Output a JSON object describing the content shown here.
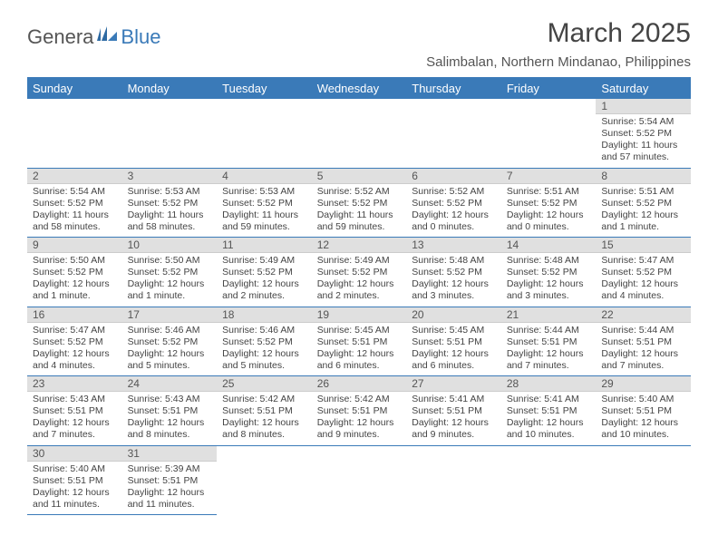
{
  "logo": {
    "part1": "Genera",
    "part2": "Blue"
  },
  "title": "March 2025",
  "subtitle": "Salimbalan, Northern Mindanao, Philippines",
  "colors": {
    "header_bg": "#3a7ab8",
    "header_fg": "#ffffff",
    "daynum_bg": "#e0e0e0",
    "rule": "#3a7ab8"
  },
  "dayHeaders": [
    "Sunday",
    "Monday",
    "Tuesday",
    "Wednesday",
    "Thursday",
    "Friday",
    "Saturday"
  ],
  "weeks": [
    [
      null,
      null,
      null,
      null,
      null,
      null,
      {
        "n": "1",
        "sunrise": "5:54 AM",
        "sunset": "5:52 PM",
        "daylight": "11 hours and 57 minutes."
      }
    ],
    [
      {
        "n": "2",
        "sunrise": "5:54 AM",
        "sunset": "5:52 PM",
        "daylight": "11 hours and 58 minutes."
      },
      {
        "n": "3",
        "sunrise": "5:53 AM",
        "sunset": "5:52 PM",
        "daylight": "11 hours and 58 minutes."
      },
      {
        "n": "4",
        "sunrise": "5:53 AM",
        "sunset": "5:52 PM",
        "daylight": "11 hours and 59 minutes."
      },
      {
        "n": "5",
        "sunrise": "5:52 AM",
        "sunset": "5:52 PM",
        "daylight": "11 hours and 59 minutes."
      },
      {
        "n": "6",
        "sunrise": "5:52 AM",
        "sunset": "5:52 PM",
        "daylight": "12 hours and 0 minutes."
      },
      {
        "n": "7",
        "sunrise": "5:51 AM",
        "sunset": "5:52 PM",
        "daylight": "12 hours and 0 minutes."
      },
      {
        "n": "8",
        "sunrise": "5:51 AM",
        "sunset": "5:52 PM",
        "daylight": "12 hours and 1 minute."
      }
    ],
    [
      {
        "n": "9",
        "sunrise": "5:50 AM",
        "sunset": "5:52 PM",
        "daylight": "12 hours and 1 minute."
      },
      {
        "n": "10",
        "sunrise": "5:50 AM",
        "sunset": "5:52 PM",
        "daylight": "12 hours and 1 minute."
      },
      {
        "n": "11",
        "sunrise": "5:49 AM",
        "sunset": "5:52 PM",
        "daylight": "12 hours and 2 minutes."
      },
      {
        "n": "12",
        "sunrise": "5:49 AM",
        "sunset": "5:52 PM",
        "daylight": "12 hours and 2 minutes."
      },
      {
        "n": "13",
        "sunrise": "5:48 AM",
        "sunset": "5:52 PM",
        "daylight": "12 hours and 3 minutes."
      },
      {
        "n": "14",
        "sunrise": "5:48 AM",
        "sunset": "5:52 PM",
        "daylight": "12 hours and 3 minutes."
      },
      {
        "n": "15",
        "sunrise": "5:47 AM",
        "sunset": "5:52 PM",
        "daylight": "12 hours and 4 minutes."
      }
    ],
    [
      {
        "n": "16",
        "sunrise": "5:47 AM",
        "sunset": "5:52 PM",
        "daylight": "12 hours and 4 minutes."
      },
      {
        "n": "17",
        "sunrise": "5:46 AM",
        "sunset": "5:52 PM",
        "daylight": "12 hours and 5 minutes."
      },
      {
        "n": "18",
        "sunrise": "5:46 AM",
        "sunset": "5:52 PM",
        "daylight": "12 hours and 5 minutes."
      },
      {
        "n": "19",
        "sunrise": "5:45 AM",
        "sunset": "5:51 PM",
        "daylight": "12 hours and 6 minutes."
      },
      {
        "n": "20",
        "sunrise": "5:45 AM",
        "sunset": "5:51 PM",
        "daylight": "12 hours and 6 minutes."
      },
      {
        "n": "21",
        "sunrise": "5:44 AM",
        "sunset": "5:51 PM",
        "daylight": "12 hours and 7 minutes."
      },
      {
        "n": "22",
        "sunrise": "5:44 AM",
        "sunset": "5:51 PM",
        "daylight": "12 hours and 7 minutes."
      }
    ],
    [
      {
        "n": "23",
        "sunrise": "5:43 AM",
        "sunset": "5:51 PM",
        "daylight": "12 hours and 7 minutes."
      },
      {
        "n": "24",
        "sunrise": "5:43 AM",
        "sunset": "5:51 PM",
        "daylight": "12 hours and 8 minutes."
      },
      {
        "n": "25",
        "sunrise": "5:42 AM",
        "sunset": "5:51 PM",
        "daylight": "12 hours and 8 minutes."
      },
      {
        "n": "26",
        "sunrise": "5:42 AM",
        "sunset": "5:51 PM",
        "daylight": "12 hours and 9 minutes."
      },
      {
        "n": "27",
        "sunrise": "5:41 AM",
        "sunset": "5:51 PM",
        "daylight": "12 hours and 9 minutes."
      },
      {
        "n": "28",
        "sunrise": "5:41 AM",
        "sunset": "5:51 PM",
        "daylight": "12 hours and 10 minutes."
      },
      {
        "n": "29",
        "sunrise": "5:40 AM",
        "sunset": "5:51 PM",
        "daylight": "12 hours and 10 minutes."
      }
    ],
    [
      {
        "n": "30",
        "sunrise": "5:40 AM",
        "sunset": "5:51 PM",
        "daylight": "12 hours and 11 minutes."
      },
      {
        "n": "31",
        "sunrise": "5:39 AM",
        "sunset": "5:51 PM",
        "daylight": "12 hours and 11 minutes."
      },
      null,
      null,
      null,
      null,
      null
    ]
  ],
  "labels": {
    "sunrise": "Sunrise:",
    "sunset": "Sunset:",
    "daylight": "Daylight:"
  }
}
